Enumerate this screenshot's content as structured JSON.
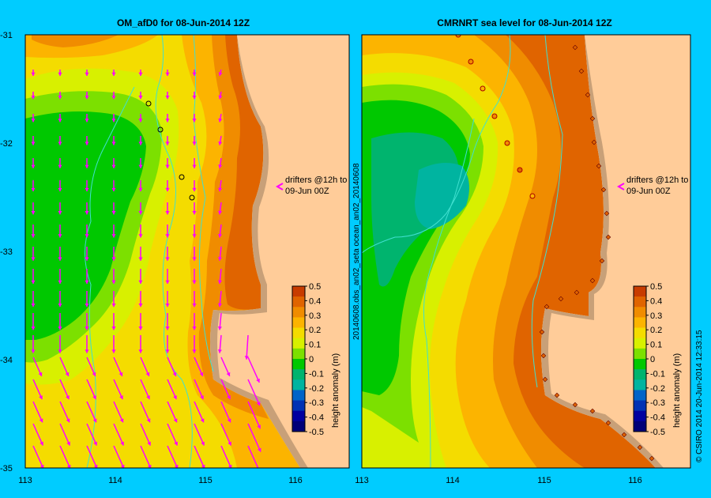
{
  "left_panel": {
    "title": "OM_afD0  for 08-Jun-2014 12Z",
    "drifter_note_line1": "drifters @12h to",
    "drifter_note_line2": "09-Jun 00Z"
  },
  "right_panel": {
    "title": "CMRNRT sea level  for 08-Jun-2014 12Z",
    "drifter_note_line1": "drifters @12h to",
    "drifter_note_line2": "09-Jun 00Z",
    "side_label": "20140608.obs_an02_seta    ocean_an02_20140608"
  },
  "axes": {
    "lat_ticks": [
      "-31",
      "-32",
      "-33",
      "-34",
      "-35"
    ],
    "lon_ticks": [
      "113",
      "114",
      "115",
      "116"
    ],
    "lat_range": [
      -35,
      -31
    ],
    "lon_range": [
      113,
      116.6
    ]
  },
  "colorbar": {
    "label": "height anomaly (m)",
    "ticks": [
      "0.5",
      "0.4",
      "0.3",
      "0.2",
      "0.1",
      "0",
      "-0.1",
      "-0.2",
      "-0.3",
      "-0.4",
      "-0.5"
    ],
    "colors": [
      "#c83c00",
      "#e06400",
      "#f08c00",
      "#fcb400",
      "#f4dc00",
      "#d8f000",
      "#7ce000",
      "#00c800",
      "#00b46e",
      "#00b4a0",
      "#0064c8",
      "#0032b4",
      "#0000a0",
      "#000078"
    ]
  },
  "credit": "© CSIRO 2014   20-Jun-2014 12:33:15",
  "colors": {
    "background": "#00ccff",
    "land": "#ffcc99",
    "shelf": "#c8a078",
    "arrows": "#ff00ff",
    "isobath": "#40e0d0"
  }
}
